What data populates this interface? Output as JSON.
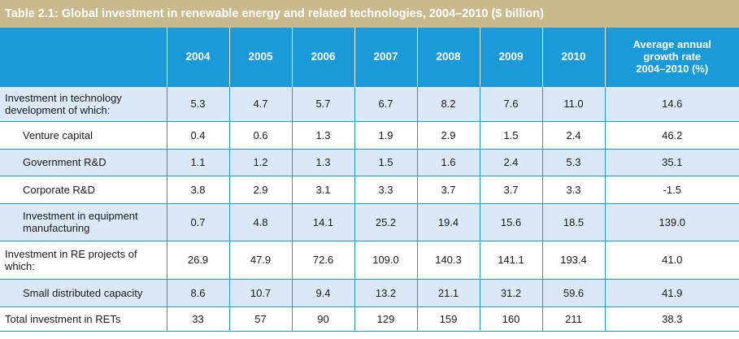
{
  "title": "Table 2.1: Global investment in renewable energy and related technologies, 2004–2010 ($ billion)",
  "columns": [
    "",
    "2004",
    "2005",
    "2006",
    "2007",
    "2008",
    "2009",
    "2010"
  ],
  "avg_header": {
    "line1": "Average annual",
    "line2": "growth rate",
    "line3": "2004–2010 (%)"
  },
  "rows": [
    {
      "label": "Investment in technology development of which:",
      "values": [
        "5.3",
        "4.7",
        "5.7",
        "6.7",
        "8.2",
        "7.6",
        "11.0",
        "14.6"
      ]
    },
    {
      "label": "Venture capital",
      "values": [
        "0.4",
        "0.6",
        "1.3",
        "1.9",
        "2.9",
        "1.5",
        "2.4",
        "46.2"
      ]
    },
    {
      "label": "Government R&D",
      "values": [
        "1.1",
        "1.2",
        "1.3",
        "1.5",
        "1.6",
        "2.4",
        "5.3",
        "35.1"
      ]
    },
    {
      "label": "Corporate R&D",
      "values": [
        "3.8",
        "2.9",
        "3.1",
        "3.3",
        "3.7",
        "3.7",
        "3.3",
        "-1.5"
      ]
    },
    {
      "label": "Investment in equipment manufacturing",
      "values": [
        "0.7",
        "4.8",
        "14.1",
        "25.2",
        "19.4",
        "15.6",
        "18.5",
        "139.0"
      ]
    },
    {
      "label": "Investment in RE projects of which:",
      "values": [
        "26.9",
        "47.9",
        "72.6",
        "109.0",
        "140.3",
        "141.1",
        "193.4",
        "41.0"
      ]
    },
    {
      "label": "Small distributed capacity",
      "values": [
        "8.6",
        "10.7",
        "9.4",
        "13.2",
        "21.1",
        "31.2",
        "59.6",
        "41.9"
      ]
    },
    {
      "label": "Total investment in RETs",
      "values": [
        "33",
        "57",
        "90",
        "129",
        "159",
        "160",
        "211",
        "38.3"
      ]
    }
  ],
  "colors": {
    "title_bg": "#c9b98c",
    "header_bg": "#1a9ad9",
    "band_bg": "#dbe9f6",
    "rule": "#1a9ad9"
  }
}
